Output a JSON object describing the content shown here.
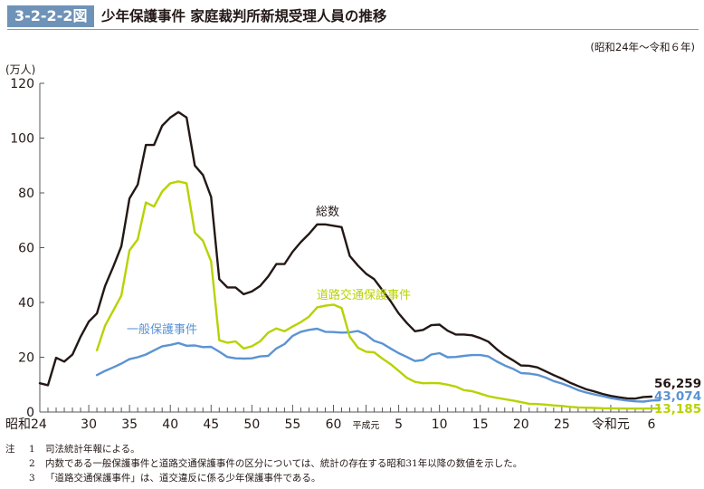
{
  "header": {
    "figure_number": "3-2-2-2図",
    "title": "少年保護事件 家庭裁判所新規受理人員の推移",
    "period": "(昭和24年～令和６年)",
    "unit": "(万人)"
  },
  "chart_data": {
    "type": "line",
    "title": "少年保護事件 家庭裁判所新規受理人員の推移",
    "xlabel": "",
    "ylabel": "(万人)",
    "ylim": [
      0,
      120
    ],
    "yticks": [
      0,
      20,
      40,
      60,
      80,
      100,
      120
    ],
    "grid": false,
    "x_years": [
      1949,
      1950,
      1951,
      1952,
      1953,
      1954,
      1955,
      1956,
      1957,
      1958,
      1959,
      1960,
      1961,
      1962,
      1963,
      1964,
      1965,
      1966,
      1967,
      1968,
      1969,
      1970,
      1971,
      1972,
      1973,
      1974,
      1975,
      1976,
      1977,
      1978,
      1979,
      1980,
      1981,
      1982,
      1983,
      1984,
      1985,
      1986,
      1987,
      1988,
      1989,
      1990,
      1991,
      1992,
      1993,
      1994,
      1995,
      1996,
      1997,
      1998,
      1999,
      2000,
      2001,
      2002,
      2003,
      2004,
      2005,
      2006,
      2007,
      2008,
      2009,
      2010,
      2011,
      2012,
      2013,
      2014,
      2015,
      2016,
      2017,
      2018,
      2019,
      2020,
      2021,
      2022,
      2023,
      2024
    ],
    "xtick_labels": [
      {
        "year": 1949,
        "label": "昭和24"
      },
      {
        "year": 1955,
        "label": "30"
      },
      {
        "year": 1960,
        "label": "35"
      },
      {
        "year": 1965,
        "label": "40"
      },
      {
        "year": 1970,
        "label": "45"
      },
      {
        "year": 1975,
        "label": "50"
      },
      {
        "year": 1980,
        "label": "55"
      },
      {
        "year": 1985,
        "label": "60"
      },
      {
        "year": 1989,
        "label": "平成元"
      },
      {
        "year": 1993,
        "label": "5"
      },
      {
        "year": 1998,
        "label": "10"
      },
      {
        "year": 2003,
        "label": "15"
      },
      {
        "year": 2008,
        "label": "20"
      },
      {
        "year": 2013,
        "label": "25"
      },
      {
        "year": 2019,
        "label": "令和元"
      },
      {
        "year": 2024,
        "label": "6"
      }
    ],
    "series": [
      {
        "name": "総数",
        "color": "#231815",
        "start_year": 1949,
        "values": [
          10.5,
          9.8,
          19.8,
          18.4,
          21.0,
          27.5,
          33.0,
          36.0,
          46.0,
          53.0,
          60.5,
          78.0,
          83.0,
          97.5,
          97.5,
          104.5,
          107.5,
          109.5,
          107.5,
          90.0,
          86.5,
          78.5,
          48.5,
          45.5,
          45.5,
          43.0,
          44.0,
          46.0,
          49.5,
          54.0,
          54.0,
          58.5,
          62.0,
          65.0,
          68.5,
          68.5,
          68.0,
          67.5,
          57.0,
          53.5,
          50.5,
          48.5,
          44.5,
          40.5,
          36.0,
          32.5,
          29.5,
          30.0,
          31.7,
          31.9,
          29.7,
          28.3,
          28.3,
          28.0,
          27.0,
          25.7,
          23.0,
          20.7,
          18.9,
          17.0,
          16.9,
          16.3,
          14.9,
          13.5,
          12.2,
          10.7,
          9.5,
          8.3,
          7.5,
          6.6,
          5.9,
          5.4,
          5.0,
          4.9,
          5.5,
          5.6259
        ],
        "end_label": "56,259"
      },
      {
        "name": "一般保護事件",
        "color": "#5b93d3",
        "start_year": 1956,
        "values": [
          13.5,
          15.0,
          16.3,
          17.7,
          19.3,
          20.0,
          21.0,
          22.5,
          24.0,
          24.5,
          25.2,
          24.2,
          24.3,
          23.7,
          23.8,
          22.0,
          20.1,
          19.6,
          19.5,
          19.6,
          20.3,
          20.5,
          23.2,
          24.8,
          27.8,
          29.3,
          30.0,
          30.4,
          29.3,
          29.2,
          29.0,
          29.1,
          29.6,
          28.3,
          26.0,
          25.0,
          23.2,
          21.5,
          20.1,
          18.6,
          19.0,
          21.0,
          21.5,
          20.0,
          20.1,
          20.5,
          20.8,
          20.8,
          20.3,
          18.5,
          17.0,
          15.8,
          14.2,
          14.0,
          13.6,
          12.6,
          11.3,
          10.4,
          9.3,
          8.0,
          7.1,
          6.4,
          5.8,
          5.1,
          4.6,
          4.2,
          3.9,
          3.8,
          4.2,
          4.3074
        ],
        "end_label": "43,074"
      },
      {
        "name": "道路交通保護事件",
        "color": "#b8d200",
        "start_year": 1956,
        "values": [
          22.5,
          31.5,
          37.0,
          42.5,
          59.0,
          63.0,
          76.5,
          75.0,
          80.5,
          83.5,
          84.2,
          83.5,
          65.5,
          62.5,
          55.0,
          26.2,
          25.3,
          25.8,
          23.2,
          24.0,
          25.8,
          29.0,
          30.5,
          29.5,
          31.2,
          32.8,
          34.8,
          38.2,
          38.8,
          39.2,
          38.0,
          27.5,
          23.5,
          22.0,
          21.8,
          19.5,
          17.5,
          15.0,
          12.5,
          11.0,
          10.5,
          10.6,
          10.5,
          10.0,
          9.3,
          8.0,
          7.6,
          6.7,
          5.8,
          5.2,
          4.7,
          4.2,
          3.6,
          3.0,
          2.9,
          2.7,
          2.4,
          2.2,
          1.9,
          1.7,
          1.6,
          1.5,
          1.4,
          1.35,
          1.3,
          1.25,
          1.25,
          1.25,
          1.3,
          1.3185
        ],
        "end_label": "13,185"
      }
    ],
    "annotations": [
      {
        "text": "総数",
        "series": "総数"
      },
      {
        "text": "道路交通保護事件",
        "series": "道路交通保護事件"
      },
      {
        "text": "一般保護事件",
        "series": "一般保護事件"
      }
    ]
  },
  "notes": {
    "label": "注",
    "items": [
      {
        "num": "1",
        "text": "司法統計年報による。"
      },
      {
        "num": "2",
        "text": "内数である一般保護事件と道路交通保護事件の区分については、統計の存在する昭和31年以降の数値を示した。"
      },
      {
        "num": "3",
        "text": "「道路交通保護事件」は、道交違反に係る少年保護事件である。"
      }
    ]
  }
}
